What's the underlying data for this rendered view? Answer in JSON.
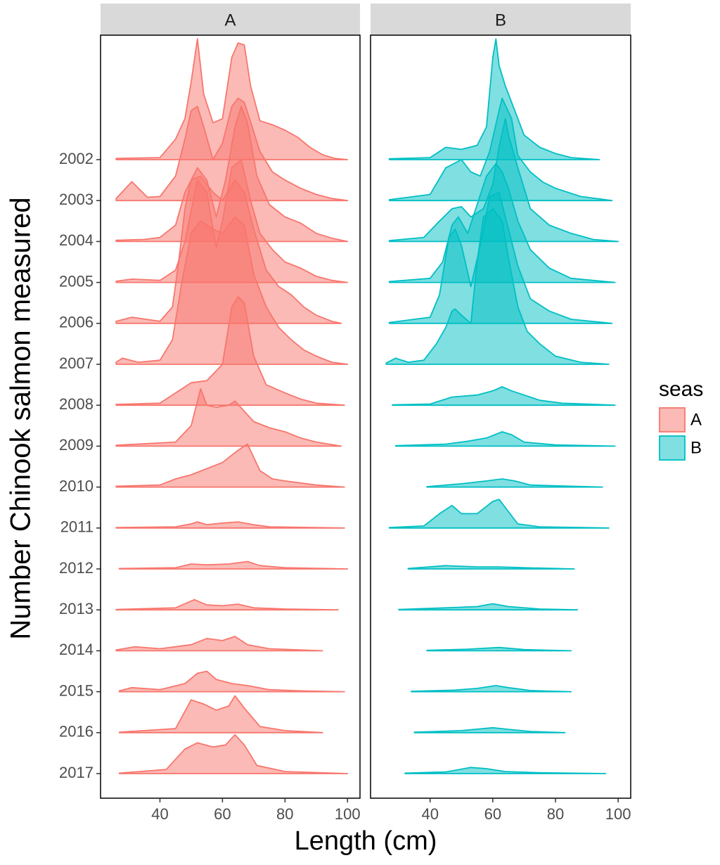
{
  "chart_data": {
    "type": "ridgeline",
    "xlabel": "Length (cm)",
    "ylabel": "Number Chinook salmon measured",
    "legend_title": "seas",
    "categories": [
      "2002",
      "2003",
      "2004",
      "2005",
      "2006",
      "2007",
      "2008",
      "2009",
      "2010",
      "2011",
      "2012",
      "2013",
      "2014",
      "2015",
      "2016",
      "2017"
    ],
    "xlim": [
      21,
      104
    ],
    "xticks": [
      40,
      60,
      80,
      100
    ],
    "series": [
      {
        "name": "A",
        "color": "#F8766D",
        "ridges": [
          {
            "x": [
              26,
              40,
              45,
              48,
              50,
              52,
              54,
              57,
              60,
              63,
              65,
              67,
              69,
              72,
              76,
              80,
              84,
              88,
              92,
              96,
              100
            ],
            "values": [
              0.03,
              0.05,
              0.5,
              1.0,
              1.9,
              2.95,
              1.6,
              0.9,
              1.0,
              2.5,
              2.85,
              2.8,
              1.8,
              0.95,
              0.85,
              0.72,
              0.55,
              0.3,
              0.12,
              0.03,
              0
            ]
          },
          {
            "x": [
              26,
              31,
              36,
              40,
              45,
              48,
              50,
              52,
              54,
              57,
              60,
              63,
              65,
              67,
              72,
              76,
              80,
              85,
              90,
              95,
              100
            ],
            "values": [
              0.05,
              0.46,
              0.08,
              0.1,
              0.6,
              1.5,
              2.2,
              2.3,
              1.8,
              1.0,
              1.4,
              2.3,
              2.5,
              2.4,
              1.2,
              0.7,
              0.5,
              0.3,
              0.15,
              0.05,
              0
            ]
          },
          {
            "x": [
              26,
              35,
              40,
              45,
              48,
              52,
              55,
              58,
              61,
              64,
              66,
              68,
              71,
              75,
              80,
              85,
              90,
              95,
              100
            ],
            "values": [
              0.03,
              0.05,
              0.1,
              0.4,
              1.2,
              1.8,
              1.5,
              0.6,
              1.5,
              2.8,
              3.3,
              2.9,
              1.6,
              0.9,
              0.6,
              0.45,
              0.2,
              0.08,
              0
            ]
          },
          {
            "x": [
              26,
              31,
              40,
              45,
              48,
              52,
              55,
              58,
              60,
              63,
              66,
              69,
              72,
              76,
              80,
              85,
              90,
              95,
              100
            ],
            "values": [
              0.03,
              0.08,
              0.05,
              0.3,
              1.0,
              2.5,
              2.2,
              0.85,
              1.5,
              2.8,
              3.0,
              2.0,
              1.2,
              0.8,
              0.5,
              0.35,
              0.15,
              0.05,
              0
            ]
          },
          {
            "x": [
              26,
              31,
              40,
              44,
              46,
              48,
              50,
              53,
              57,
              60,
              64,
              67,
              70,
              74,
              78,
              82,
              86,
              90,
              95,
              98
            ],
            "values": [
              0.05,
              0.15,
              0.05,
              0.4,
              1.5,
              2.8,
              3.5,
              3.6,
              3.2,
              3.0,
              3.5,
              3.2,
              2.3,
              1.3,
              0.9,
              0.7,
              0.4,
              0.2,
              0.05,
              0
            ]
          },
          {
            "x": [
              26,
              28,
              33,
              40,
              44,
              47,
              50,
              53,
              57,
              60,
              64,
              67,
              70,
              74,
              78,
              82,
              86,
              90,
              95,
              100
            ],
            "values": [
              0.05,
              0.15,
              0.05,
              0.1,
              0.6,
              2.0,
              3.2,
              3.5,
              3.3,
              3.2,
              3.6,
              3.4,
              2.2,
              1.4,
              0.9,
              0.6,
              0.35,
              0.2,
              0.05,
              0
            ]
          },
          {
            "x": [
              26,
              40,
              45,
              50,
              55,
              60,
              63,
              65,
              67,
              70,
              74,
              80,
              85,
              90,
              99
            ],
            "values": [
              0.02,
              0.05,
              0.3,
              0.55,
              0.6,
              1.0,
              2.4,
              2.65,
              2.5,
              1.2,
              0.5,
              0.3,
              0.15,
              0.05,
              0
            ]
          },
          {
            "x": [
              26,
              45,
              50,
              53,
              55,
              58,
              62,
              64,
              67,
              70,
              75,
              80,
              85,
              90,
              98
            ],
            "values": [
              0.02,
              0.1,
              0.5,
              1.4,
              1.0,
              0.95,
              1.0,
              1.1,
              0.85,
              0.6,
              0.45,
              0.35,
              0.2,
              0.1,
              0
            ]
          },
          {
            "x": [
              26,
              40,
              45,
              50,
              55,
              60,
              65,
              68,
              72,
              76,
              80,
              85,
              90,
              99
            ],
            "values": [
              0.02,
              0.05,
              0.2,
              0.3,
              0.45,
              0.6,
              0.9,
              1.05,
              0.4,
              0.2,
              0.15,
              0.1,
              0.05,
              0
            ]
          },
          {
            "x": [
              26,
              45,
              50,
              52,
              55,
              60,
              65,
              70,
              75,
              99
            ],
            "values": [
              0.01,
              0.03,
              0.1,
              0.15,
              0.08,
              0.12,
              0.15,
              0.08,
              0.03,
              0
            ]
          },
          {
            "x": [
              27,
              45,
              50,
              55,
              62,
              68,
              72,
              80,
              100
            ],
            "values": [
              0.01,
              0.03,
              0.12,
              0.1,
              0.12,
              0.18,
              0.08,
              0.03,
              0
            ]
          },
          {
            "x": [
              26,
              45,
              51,
              55,
              60,
              65,
              70,
              80,
              97
            ],
            "values": [
              0.01,
              0.05,
              0.25,
              0.12,
              0.1,
              0.14,
              0.05,
              0.02,
              0
            ]
          },
          {
            "x": [
              26,
              32,
              40,
              50,
              55,
              60,
              64,
              68,
              75,
              92
            ],
            "values": [
              0.02,
              0.1,
              0.05,
              0.15,
              0.3,
              0.25,
              0.35,
              0.15,
              0.05,
              0
            ]
          },
          {
            "x": [
              27,
              31,
              40,
              48,
              52,
              55,
              58,
              63,
              68,
              75,
              85,
              99
            ],
            "values": [
              0.02,
              0.1,
              0.05,
              0.2,
              0.45,
              0.5,
              0.3,
              0.2,
              0.15,
              0.05,
              0.02,
              0
            ]
          },
          {
            "x": [
              27,
              45,
              50,
              54,
              58,
              62,
              64,
              67,
              72,
              80,
              92
            ],
            "values": [
              0.01,
              0.1,
              0.8,
              0.7,
              0.55,
              0.65,
              0.9,
              0.6,
              0.15,
              0.05,
              0
            ]
          },
          {
            "x": [
              27,
              42,
              48,
              52,
              57,
              61,
              64,
              67,
              71,
              80,
              100
            ],
            "values": [
              0.01,
              0.1,
              0.6,
              0.75,
              0.65,
              0.7,
              0.95,
              0.7,
              0.2,
              0.05,
              0
            ]
          }
        ]
      },
      {
        "name": "B",
        "color": "#00BFC4",
        "ridges": [
          {
            "x": [
              27,
              40,
              45,
              50,
              55,
              58,
              60,
              61,
              62,
              64,
              67,
              70,
              75,
              80,
              85,
              94
            ],
            "values": [
              0.02,
              0.05,
              0.3,
              0.25,
              0.35,
              0.8,
              2.5,
              2.95,
              2.3,
              1.8,
              1.2,
              0.6,
              0.3,
              0.15,
              0.05,
              0
            ]
          },
          {
            "x": [
              27,
              40,
              45,
              50,
              53,
              56,
              59,
              62,
              63,
              66,
              68,
              72,
              76,
              80,
              88,
              98
            ],
            "values": [
              0.02,
              0.15,
              0.8,
              1.0,
              0.7,
              0.6,
              1.2,
              2.2,
              2.5,
              2.0,
              1.1,
              0.7,
              0.45,
              0.3,
              0.1,
              0
            ]
          },
          {
            "x": [
              27,
              38,
              43,
              47,
              50,
              53,
              57,
              60,
              62,
              64,
              65,
              68,
              72,
              78,
              85,
              92,
              100
            ],
            "values": [
              0.02,
              0.1,
              0.5,
              0.8,
              0.85,
              0.6,
              0.8,
              1.4,
              2.3,
              3.0,
              2.6,
              1.8,
              0.8,
              0.4,
              0.2,
              0.05,
              0
            ]
          },
          {
            "x": [
              27,
              40,
              44,
              47,
              49,
              52,
              55,
              58,
              61,
              63,
              65,
              68,
              72,
              78,
              85,
              99
            ],
            "values": [
              0.02,
              0.1,
              0.5,
              1.4,
              1.6,
              1.2,
              1.9,
              2.6,
              2.9,
              2.7,
              2.3,
              1.5,
              0.8,
              0.35,
              0.1,
              0
            ]
          },
          {
            "x": [
              27,
              40,
              43,
              46,
              48,
              50,
              53,
              56,
              59,
              62,
              65,
              68,
              72,
              78,
              85,
              98
            ],
            "values": [
              0.02,
              0.15,
              0.7,
              2.1,
              2.3,
              1.9,
              0.9,
              1.9,
              3.1,
              3.2,
              2.3,
              1.4,
              0.6,
              0.3,
              0.1,
              0
            ]
          },
          {
            "x": [
              26,
              29,
              33,
              38,
              42,
              45,
              47,
              48,
              50,
              53,
              55,
              57,
              60,
              63,
              65,
              68,
              71,
              75,
              80,
              88,
              97
            ],
            "values": [
              0.03,
              0.15,
              0.05,
              0.1,
              0.5,
              0.9,
              1.3,
              1.35,
              1.2,
              1.0,
              2.5,
              3.6,
              3.8,
              3.5,
              2.6,
              1.4,
              0.8,
              0.5,
              0.2,
              0.05,
              0
            ]
          },
          {
            "x": [
              28,
              40,
              47,
              55,
              60,
              63,
              66,
              70,
              75,
              82,
              99
            ],
            "values": [
              0.01,
              0.03,
              0.2,
              0.25,
              0.35,
              0.45,
              0.35,
              0.25,
              0.12,
              0.05,
              0
            ]
          },
          {
            "x": [
              29,
              45,
              52,
              58,
              63,
              66,
              70,
              80,
              99
            ],
            "values": [
              0.01,
              0.05,
              0.12,
              0.2,
              0.35,
              0.28,
              0.1,
              0.03,
              0
            ]
          },
          {
            "x": [
              39,
              50,
              58,
              63,
              67,
              72,
              85,
              95
            ],
            "values": [
              0.01,
              0.08,
              0.15,
              0.2,
              0.15,
              0.05,
              0.02,
              0
            ]
          },
          {
            "x": [
              27,
              38,
              43,
              47,
              50,
              55,
              60,
              62,
              65,
              68,
              75,
              97
            ],
            "values": [
              0.01,
              0.05,
              0.35,
              0.55,
              0.35,
              0.35,
              0.65,
              0.7,
              0.4,
              0.1,
              0.03,
              0
            ]
          },
          {
            "x": [
              33,
              45,
              55,
              62,
              70,
              86
            ],
            "values": [
              0.01,
              0.08,
              0.05,
              0.05,
              0.03,
              0
            ]
          },
          {
            "x": [
              30,
              45,
              55,
              60,
              65,
              75,
              87
            ],
            "values": [
              0.01,
              0.05,
              0.08,
              0.15,
              0.08,
              0.02,
              0
            ]
          },
          {
            "x": [
              39,
              52,
              62,
              70,
              85
            ],
            "values": [
              0.01,
              0.04,
              0.08,
              0.03,
              0
            ]
          },
          {
            "x": [
              34,
              48,
              55,
              61,
              65,
              72,
              85
            ],
            "values": [
              0.01,
              0.04,
              0.08,
              0.15,
              0.1,
              0.03,
              0
            ]
          },
          {
            "x": [
              35,
              50,
              60,
              65,
              72,
              83
            ],
            "values": [
              0.01,
              0.05,
              0.12,
              0.08,
              0.03,
              0
            ]
          },
          {
            "x": [
              32,
              45,
              53,
              58,
              64,
              75,
              96
            ],
            "values": [
              0.01,
              0.04,
              0.15,
              0.12,
              0.05,
              0.02,
              0
            ]
          }
        ]
      }
    ]
  }
}
